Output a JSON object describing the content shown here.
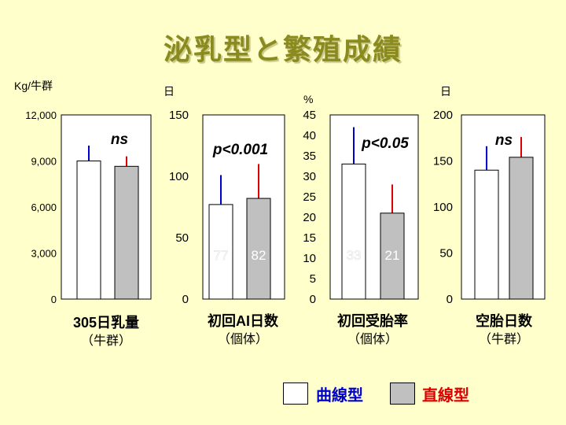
{
  "slide": {
    "title": "泌乳型と繁殖成績",
    "legend": [
      {
        "label": "曲線型",
        "text_color": "#0000cc",
        "fill": "#ffffff"
      },
      {
        "label": "直線型",
        "text_color": "#dd0000",
        "fill": "#c0c0c0"
      }
    ]
  },
  "chart_data": [
    {
      "type": "bar",
      "unit_label": "Kg/牛群",
      "ylim": [
        0,
        12000
      ],
      "yticks": [
        "0",
        "3,000",
        "6,000",
        "9,000",
        "12,000"
      ],
      "ytick_values": [
        0,
        3000,
        6000,
        9000,
        12000
      ],
      "xlabel": "305日乳量",
      "sublabel": "（牛群）",
      "annotation": "ns",
      "series": [
        {
          "name": "曲線型",
          "value": 9000,
          "error_top": 10000,
          "value_label": ""
        },
        {
          "name": "直線型",
          "value": 8650,
          "error_top": 9300,
          "value_label": ""
        }
      ]
    },
    {
      "type": "bar",
      "unit_label": "日",
      "ylim": [
        0,
        150
      ],
      "yticks": [
        "0",
        "50",
        "100",
        "150"
      ],
      "ytick_values": [
        0,
        50,
        100,
        150
      ],
      "xlabel": "初回AI日数",
      "sublabel": "（個体）",
      "annotation": "p<0.001",
      "series": [
        {
          "name": "曲線型",
          "value": 77,
          "error_top": 101,
          "value_label": "77"
        },
        {
          "name": "直線型",
          "value": 82,
          "error_top": 110,
          "value_label": "82"
        }
      ]
    },
    {
      "type": "bar",
      "unit_label": "%",
      "ylim": [
        0,
        45
      ],
      "yticks": [
        "0",
        "5",
        "10",
        "15",
        "20",
        "25",
        "30",
        "35",
        "40",
        "45"
      ],
      "ytick_values": [
        0,
        5,
        10,
        15,
        20,
        25,
        30,
        35,
        40,
        45
      ],
      "xlabel": "初回受胎率",
      "sublabel": "（個体）",
      "annotation": "p<0.05",
      "series": [
        {
          "name": "曲線型",
          "value": 33,
          "error_top": 42,
          "value_label": "33"
        },
        {
          "name": "直線型",
          "value": 21,
          "error_top": 28,
          "value_label": "21"
        }
      ]
    },
    {
      "type": "bar",
      "unit_label": "日",
      "ylim": [
        0,
        200
      ],
      "yticks": [
        "0",
        "50",
        "100",
        "150",
        "200"
      ],
      "ytick_values": [
        0,
        50,
        100,
        150,
        200
      ],
      "xlabel": "空胎日数",
      "sublabel": "（牛群）",
      "annotation": "ns",
      "series": [
        {
          "name": "曲線型",
          "value": 140,
          "error_top": 166,
          "value_label": ""
        },
        {
          "name": "直線型",
          "value": 154,
          "error_top": 176,
          "value_label": ""
        }
      ]
    }
  ]
}
